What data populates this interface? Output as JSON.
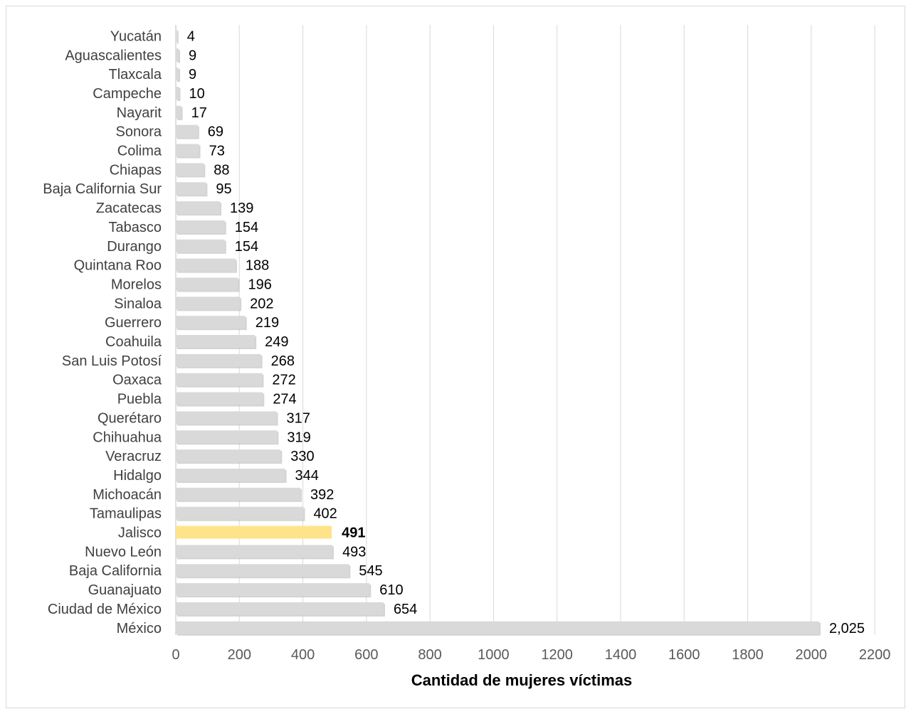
{
  "chart_data": {
    "type": "bar",
    "orientation": "horizontal",
    "title": "",
    "xlabel": "Cantidad de mujeres víctimas",
    "ylabel": "",
    "xlim": [
      0,
      2200
    ],
    "xticks": [
      0,
      200,
      400,
      600,
      800,
      1000,
      1200,
      1400,
      1600,
      1800,
      2000,
      2200
    ],
    "grid": true,
    "bar_color": "#d9d9d9",
    "highlight_color": "#ffe38a",
    "highlight_category": "Jalisco",
    "categories": [
      "Yucatán",
      "Aguascalientes",
      "Tlaxcala",
      "Campeche",
      "Nayarit",
      "Sonora",
      "Colima",
      "Chiapas",
      "Baja California Sur",
      "Zacatecas",
      "Tabasco",
      "Durango",
      "Quintana Roo",
      "Morelos",
      "Sinaloa",
      "Guerrero",
      "Coahuila",
      "San Luis Potosí",
      "Oaxaca",
      "Puebla",
      "Querétaro",
      "Chihuahua",
      "Veracruz",
      "Hidalgo",
      "Michoacán",
      "Tamaulipas",
      "Jalisco",
      "Nuevo León",
      "Baja California",
      "Guanajuato",
      "Ciudad de México",
      "México"
    ],
    "values": [
      4,
      9,
      9,
      10,
      17,
      69,
      73,
      88,
      95,
      139,
      154,
      154,
      188,
      196,
      202,
      219,
      249,
      268,
      272,
      274,
      317,
      319,
      330,
      344,
      392,
      402,
      491,
      493,
      545,
      610,
      654,
      2025
    ],
    "labels": [
      "4",
      "9",
      "9",
      "10",
      "17",
      "69",
      "73",
      "88",
      "95",
      "139",
      "154",
      "154",
      "188",
      "196",
      "202",
      "219",
      "249",
      "268",
      "272",
      "274",
      "317",
      "319",
      "330",
      "344",
      "392",
      "402",
      "491",
      "493",
      "545",
      "610",
      "654",
      "2,025"
    ]
  }
}
